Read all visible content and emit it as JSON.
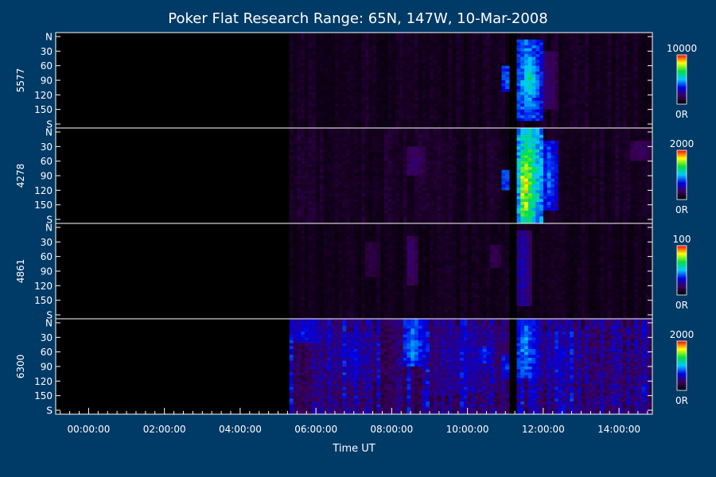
{
  "chart_data": {
    "type": "heatmap",
    "title": "Poker Flat Research Range: 65N, 147W, 10-Mar-2008",
    "xlabel": "Time UT",
    "x_range_hours": [
      -0.87,
      14.88
    ],
    "x_ticks": [
      {
        "hour": 0,
        "label": "00:00:00"
      },
      {
        "hour": 2,
        "label": "02:00:00"
      },
      {
        "hour": 4,
        "label": "04:00:00"
      },
      {
        "hour": 6,
        "label": "06:00:00"
      },
      {
        "hour": 8,
        "label": "08:00:00"
      },
      {
        "hour": 10,
        "label": "10:00:00"
      },
      {
        "hour": 12,
        "label": "12:00:00"
      },
      {
        "hour": 14,
        "label": "14:00:00"
      }
    ],
    "y_ticks": [
      {
        "angle": 0,
        "label": "N"
      },
      {
        "angle": 30,
        "label": "30"
      },
      {
        "angle": 60,
        "label": "60"
      },
      {
        "angle": 90,
        "label": "90"
      },
      {
        "angle": 120,
        "label": "120"
      },
      {
        "angle": 150,
        "label": "150"
      },
      {
        "angle": 180,
        "label": "S"
      }
    ],
    "colorscale": [
      "#000000",
      "#3a0058",
      "#0000e6",
      "#00c8ff",
      "#00e040",
      "#ffff00",
      "#ff0000"
    ],
    "data_start_hour": 5.3,
    "data_end_hour": 14.85,
    "gap_hours": [
      11.05,
      11.25
    ],
    "panels": [
      {
        "ylabel": "5577",
        "cbar_max": "10000",
        "cbar_min": "0R",
        "bg": 0.06,
        "bursts": [
          {
            "t0": 11.3,
            "t1": 11.9,
            "a0": 10,
            "a1": 170,
            "v": 0.55
          },
          {
            "t0": 11.5,
            "t1": 11.8,
            "a0": 60,
            "a1": 120,
            "v": 0.62
          },
          {
            "t0": 10.97,
            "t1": 11.03,
            "a0": 60,
            "a1": 110,
            "v": 0.5
          },
          {
            "t0": 11.9,
            "t1": 12.3,
            "a0": 30,
            "a1": 150,
            "v": 0.22
          }
        ]
      },
      {
        "ylabel": "4278",
        "cbar_max": "2000",
        "cbar_min": "0R",
        "bg": 0.07,
        "bursts": [
          {
            "t0": 11.3,
            "t1": 11.95,
            "a0": 0,
            "a1": 180,
            "v": 0.72
          },
          {
            "t0": 11.4,
            "t1": 11.65,
            "a0": 40,
            "a1": 170,
            "v": 0.92
          },
          {
            "t0": 11.95,
            "t1": 12.35,
            "a0": 20,
            "a1": 160,
            "v": 0.45
          },
          {
            "t0": 8.4,
            "t1": 8.8,
            "a0": 30,
            "a1": 90,
            "v": 0.22
          },
          {
            "t0": 10.97,
            "t1": 11.03,
            "a0": 80,
            "a1": 120,
            "v": 0.5
          },
          {
            "t0": 14.3,
            "t1": 14.85,
            "a0": 20,
            "a1": 60,
            "v": 0.2
          }
        ]
      },
      {
        "ylabel": "4861",
        "cbar_max": "100",
        "cbar_min": "0R",
        "bg": 0.05,
        "bursts": [
          {
            "t0": 11.3,
            "t1": 11.6,
            "a0": 10,
            "a1": 160,
            "v": 0.3
          },
          {
            "t0": 8.4,
            "t1": 8.6,
            "a0": 20,
            "a1": 120,
            "v": 0.22
          },
          {
            "t0": 7.3,
            "t1": 7.6,
            "a0": 30,
            "a1": 100,
            "v": 0.15
          },
          {
            "t0": 10.6,
            "t1": 10.8,
            "a0": 40,
            "a1": 80,
            "v": 0.18
          }
        ]
      },
      {
        "ylabel": "6300",
        "cbar_max": "2000",
        "cbar_min": "0R",
        "bg": 0.22,
        "bursts": [
          {
            "t0": 8.3,
            "t1": 8.8,
            "a0": 0,
            "a1": 90,
            "v": 0.5
          },
          {
            "t0": 11.3,
            "t1": 11.8,
            "a0": 0,
            "a1": 110,
            "v": 0.5
          },
          {
            "t0": 10.3,
            "t1": 10.6,
            "a0": 50,
            "a1": 80,
            "v": 0.42
          },
          {
            "t0": 10.95,
            "t1": 11.03,
            "a0": 70,
            "a1": 110,
            "v": 0.45
          },
          {
            "t0": 6.5,
            "t1": 7.5,
            "a0": 20,
            "a1": 120,
            "v": 0.33
          },
          {
            "t0": 5.3,
            "t1": 6.2,
            "a0": 0,
            "a1": 40,
            "v": 0.38
          },
          {
            "t0": 9.0,
            "t1": 10.9,
            "a0": 10,
            "a1": 140,
            "v": 0.3
          },
          {
            "t0": 11.8,
            "t1": 13.0,
            "a0": 20,
            "a1": 120,
            "v": 0.3
          }
        ]
      }
    ]
  }
}
